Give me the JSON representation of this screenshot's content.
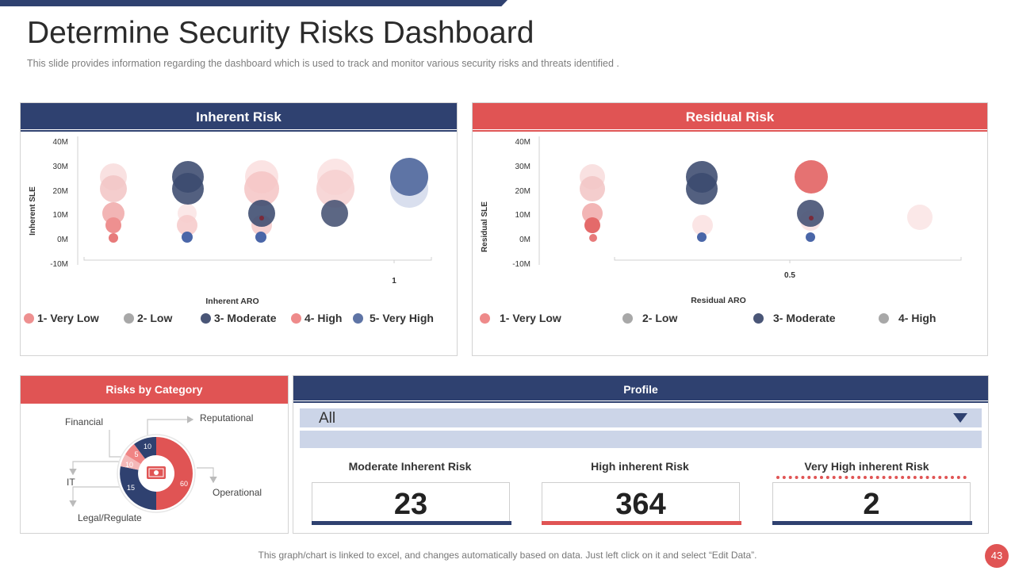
{
  "header": {
    "title": "Determine Security Risks Dashboard",
    "subtitle": "This slide provides  information  regarding  the dashboard  which is used to track and  monitor various  security risks and threats identified  ."
  },
  "inherent": {
    "title": "Inherent Risk",
    "ylabel": "Inherent SLE",
    "xlabel": "Inherent ARO",
    "yticks": [
      "40M",
      "30M",
      "20M",
      "10M",
      "0M",
      "-10M"
    ],
    "xtick": "1",
    "legend": [
      "1- Very Low",
      "2- Low",
      "3- Moderate",
      "4- High",
      "5- Very High"
    ]
  },
  "residual": {
    "title": "Residual Risk",
    "ylabel": "Residual SLE",
    "xlabel": "Residual ARO",
    "yticks": [
      "40M",
      "30M",
      "20M",
      "10M",
      "0M",
      "-10M"
    ],
    "xtick": "0.5",
    "legend": [
      "1- Very Low",
      "2- Low",
      "3- Moderate",
      "4- High"
    ]
  },
  "category": {
    "title": "Risks by Category",
    "labels": {
      "financial": "Financial",
      "reputational": "Reputational",
      "it": "IT",
      "operational": "Operational",
      "legal": "Legal/Regulate"
    },
    "values": [
      "10",
      "5",
      "10",
      "15",
      "60"
    ]
  },
  "profile": {
    "title": "Profile",
    "filter_value": "All",
    "stats": [
      {
        "label": "Moderate Inherent Risk",
        "value": "23"
      },
      {
        "label": "High inherent Risk",
        "value": "364"
      },
      {
        "label": "Very High inherent Risk",
        "value": "2"
      }
    ]
  },
  "footer": {
    "note": "This graph/chart is linked to excel,  and changes automatically based on data. Just left click on it and select “Edit Data”.",
    "page": "43"
  },
  "colors": {
    "navy": "#2f4170",
    "red": "#e05454",
    "light_blue": "#ccd5e8"
  },
  "chart_data": [
    {
      "type": "scatter",
      "title": "Inherent Risk",
      "xlabel": "Inherent ARO",
      "ylabel": "Inherent SLE",
      "ylim": [
        -10,
        40
      ],
      "x_tick_labels": [
        "1"
      ],
      "y_tick_labels": [
        "40M",
        "30M",
        "20M",
        "10M",
        "0M",
        "-10M"
      ],
      "series": [
        {
          "name": "1- Very Low",
          "color": "#e8898b",
          "points": [
            {
              "y": 0,
              "r": 1
            },
            {
              "y": 5,
              "r": 2
            },
            {
              "y": 10,
              "r": 2.5
            },
            {
              "y": 20,
              "r": 3
            },
            {
              "y": 25,
              "r": 3
            }
          ]
        },
        {
          "name": "2- Low",
          "color": "#f2c8c8",
          "points": [
            {
              "y": 5,
              "r": 2.5
            },
            {
              "y": 10,
              "r": 2
            }
          ]
        },
        {
          "name": "3- Moderate",
          "color": "#3b4a6e",
          "points": [
            {
              "y": 0,
              "r": 1
            },
            {
              "y": 10,
              "r": 3
            },
            {
              "y": 20,
              "r": 3.5
            },
            {
              "y": 25,
              "r": 3.5
            }
          ]
        },
        {
          "name": "4- High",
          "color": "#f4c4c4",
          "points": [
            {
              "y": 5,
              "r": 2.5
            },
            {
              "y": 20,
              "r": 4
            },
            {
              "y": 25,
              "r": 4
            }
          ]
        },
        {
          "name": "5- Very High",
          "color": "#5e74a5",
          "points": [
            {
              "y": 25,
              "r": 4.5
            },
            {
              "y": 20,
              "r": 4.5
            }
          ]
        }
      ]
    },
    {
      "type": "scatter",
      "title": "Residual Risk",
      "xlabel": "Residual ARO",
      "ylabel": "Residual SLE",
      "ylim": [
        -10,
        40
      ],
      "x_tick_labels": [
        "0.5"
      ],
      "y_tick_labels": [
        "40M",
        "30M",
        "20M",
        "10M",
        "0M",
        "-10M"
      ],
      "series": [
        {
          "name": "1- Very Low",
          "color": "#e8898b",
          "points": [
            {
              "y": 0,
              "r": 1
            },
            {
              "y": 5,
              "r": 1.5
            },
            {
              "y": 10,
              "r": 2.5
            },
            {
              "y": 20,
              "r": 3
            },
            {
              "y": 25,
              "r": 3
            }
          ]
        },
        {
          "name": "2- Low",
          "color": "#f2c8c8",
          "points": [
            {
              "y": 5,
              "r": 2.5
            },
            {
              "y": 8,
              "r": 3
            }
          ]
        },
        {
          "name": "3- Moderate",
          "color": "#3b4a6e",
          "points": [
            {
              "y": 0,
              "r": 1
            },
            {
              "y": 10,
              "r": 3
            },
            {
              "y": 20,
              "r": 3.5
            },
            {
              "y": 25,
              "r": 3.5
            }
          ]
        },
        {
          "name": "4- High",
          "color": "#e05454",
          "points": [
            {
              "y": 25,
              "r": 4
            }
          ]
        }
      ]
    },
    {
      "type": "pie",
      "title": "Risks by Category",
      "categories": [
        "Financial",
        "Reputational",
        "IT",
        "Legal/Regulate",
        "Operational"
      ],
      "values": [
        10,
        5,
        10,
        15,
        60
      ]
    }
  ]
}
